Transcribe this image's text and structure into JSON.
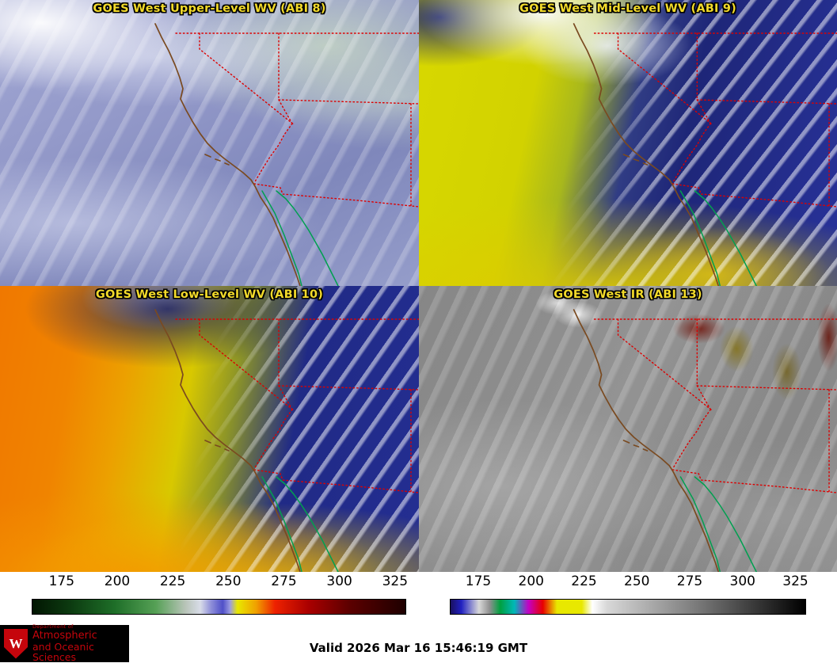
{
  "panels": [
    {
      "title": "GOES West Upper-Level WV (ABI 8)"
    },
    {
      "title": "GOES West Mid-Level WV (ABI 9)"
    },
    {
      "title": "GOES West Low-Level WV (ABI 10)"
    },
    {
      "title": "GOES West IR (ABI 13)"
    }
  ],
  "colorbars": [
    {
      "name": "water-vapor-temperature-scale",
      "ticks": [
        "175",
        "200",
        "225",
        "250",
        "275",
        "300",
        "325"
      ],
      "stops": [
        {
          "p": 0,
          "c": "#021602"
        },
        {
          "p": 10,
          "c": "#0c3a10"
        },
        {
          "p": 22,
          "c": "#1e6e28"
        },
        {
          "p": 33,
          "c": "#55a055"
        },
        {
          "p": 41,
          "c": "#b8c4b8"
        },
        {
          "p": 45,
          "c": "#d8dce8"
        },
        {
          "p": 48,
          "c": "#8c8cd8"
        },
        {
          "p": 51,
          "c": "#5050c8"
        },
        {
          "p": 53,
          "c": "#9c9ce0"
        },
        {
          "p": 55,
          "c": "#e8e800"
        },
        {
          "p": 60,
          "c": "#f0a000"
        },
        {
          "p": 65,
          "c": "#ee2200"
        },
        {
          "p": 74,
          "c": "#aa0000"
        },
        {
          "p": 85,
          "c": "#5c0000"
        },
        {
          "p": 100,
          "c": "#1e0000"
        }
      ]
    },
    {
      "name": "ir-temperature-scale",
      "ticks": [
        "175",
        "200",
        "225",
        "250",
        "275",
        "300",
        "325"
      ],
      "stops": [
        {
          "p": 0,
          "c": "#1a1060"
        },
        {
          "p": 3,
          "c": "#2020c0"
        },
        {
          "p": 6,
          "c": "#9090d0"
        },
        {
          "p": 8,
          "c": "#d8d8d8"
        },
        {
          "p": 11,
          "c": "#909090"
        },
        {
          "p": 14,
          "c": "#00a040"
        },
        {
          "p": 18,
          "c": "#00b8b8"
        },
        {
          "p": 22,
          "c": "#c400c4"
        },
        {
          "p": 26,
          "c": "#e80000"
        },
        {
          "p": 30,
          "c": "#e8e800"
        },
        {
          "p": 37,
          "c": "#e8e800"
        },
        {
          "p": 40,
          "c": "#ffffff"
        },
        {
          "p": 44,
          "c": "#d8d8d8"
        },
        {
          "p": 70,
          "c": "#787878"
        },
        {
          "p": 100,
          "c": "#000000"
        }
      ]
    }
  ],
  "map_overlay": {
    "state_borders": "#dd0000",
    "coastline": "#7a4a20",
    "water_boundaries": "#00a050"
  },
  "footer": {
    "valid_time": "Valid 2026 Mar 16 15:46:19 GMT"
  },
  "logo": {
    "letter": "W",
    "dept_line": "Department of",
    "line1": "Atmospheric",
    "line2": "and Oceanic Sciences"
  }
}
